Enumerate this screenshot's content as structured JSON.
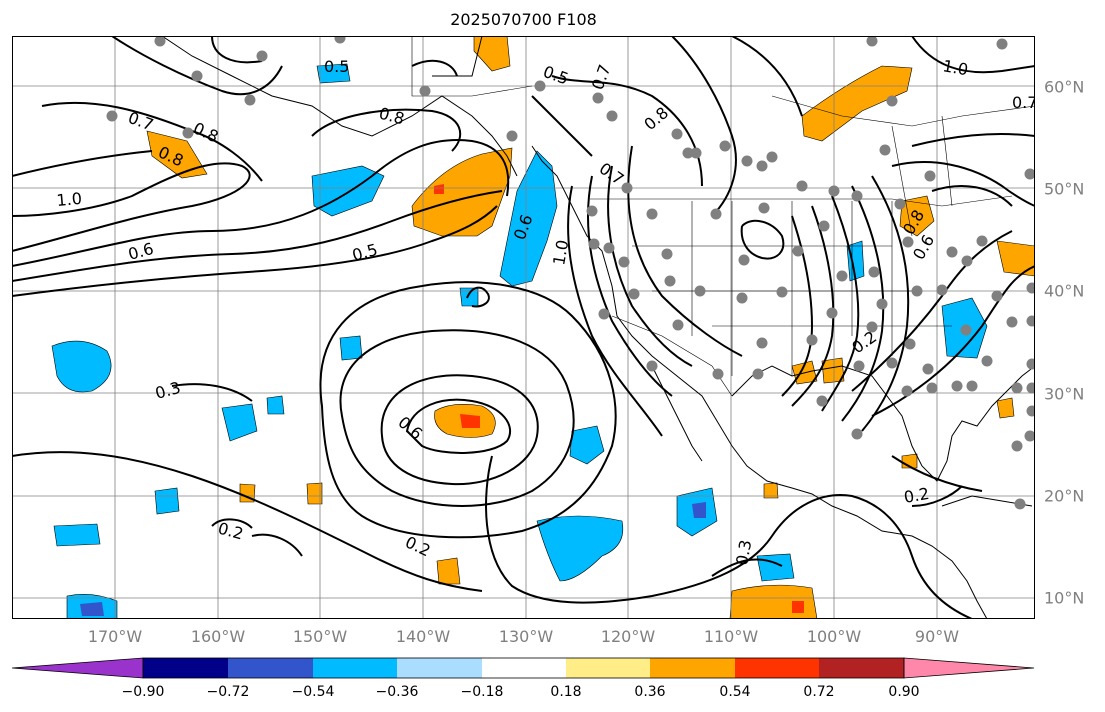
{
  "title": "2025070700 F108",
  "map": {
    "lat_labels": [
      "60°N",
      "50°N",
      "40°N",
      "30°N",
      "20°N",
      "10°N"
    ],
    "lon_labels": [
      "170°W",
      "160°W",
      "150°W",
      "140°W",
      "130°W",
      "120°W",
      "110°W",
      "100°W",
      "90°W"
    ],
    "contour_labels": [
      {
        "text": "0.5"
      },
      {
        "text": "0.7"
      },
      {
        "text": "0.8"
      },
      {
        "text": "0.8"
      },
      {
        "text": "0.8"
      },
      {
        "text": "1.0"
      },
      {
        "text": "0.6"
      },
      {
        "text": "0.5"
      },
      {
        "text": "0.3"
      },
      {
        "text": "0.6"
      },
      {
        "text": "0.2"
      },
      {
        "text": "0.2"
      },
      {
        "text": "0.6"
      },
      {
        "text": "0.5"
      },
      {
        "text": "0.7"
      },
      {
        "text": "0.8"
      },
      {
        "text": "0.7"
      },
      {
        "text": "1.0"
      },
      {
        "text": "0.6"
      },
      {
        "text": "0.8"
      },
      {
        "text": "0.2"
      },
      {
        "text": "0.2"
      },
      {
        "text": "0.3"
      },
      {
        "text": "1.0"
      },
      {
        "text": "0.7"
      }
    ],
    "colors": {
      "coast": "#000000",
      "grid": "#808080",
      "station": "#808080",
      "contour": "#000000"
    }
  },
  "colorbar": {
    "ticks": [
      "−0.90",
      "−0.72",
      "−0.54",
      "−0.36",
      "−0.18",
      "0.18",
      "0.36",
      "0.54",
      "0.72",
      "0.90"
    ],
    "colors": [
      "#9933cc",
      "#000088",
      "#3355cc",
      "#00bbff",
      "#aaddff",
      "#ffffff",
      "#ffee88",
      "#ffa500",
      "#ff3300",
      "#b22222",
      "#ff88aa"
    ]
  }
}
